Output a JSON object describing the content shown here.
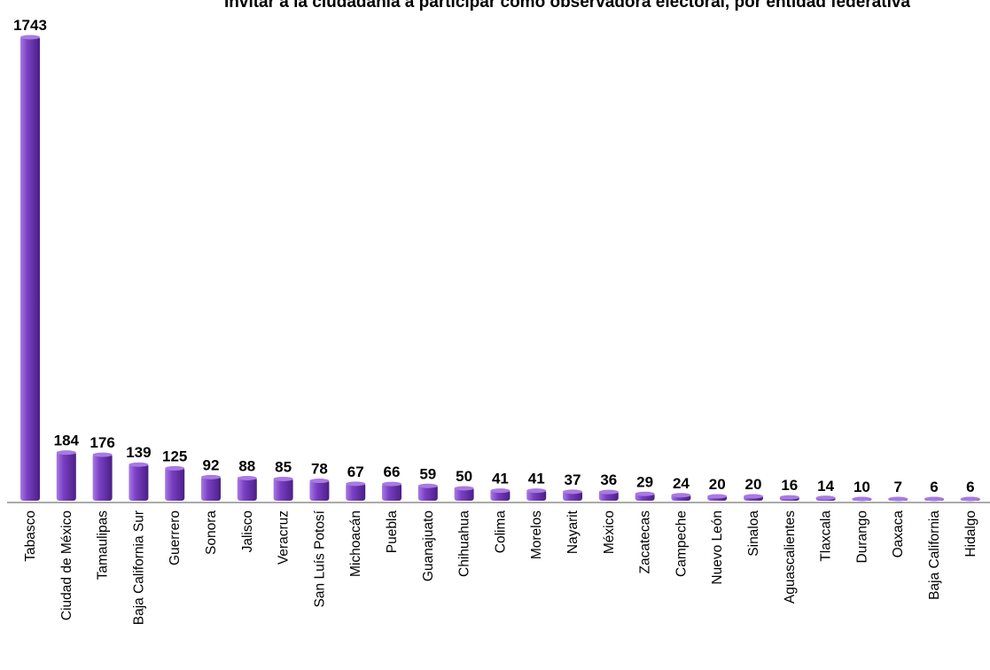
{
  "chart_data": {
    "type": "bar",
    "title": "Invitar a la ciudadanía a participar como observadora electoral, por entidad federativa",
    "categories": [
      "Tabasco",
      "Ciudad de México",
      "Tamaulipas",
      "Baja California Sur",
      "Guerrero",
      "Sonora",
      "Jalisco",
      "Veracruz",
      "San Luís Potosí",
      "Michoacán",
      "Puebla",
      "Guanajuato",
      "Chihuahua",
      "Colima",
      "Morelos",
      "Nayarit",
      "México",
      "Zacatecas",
      "Campeche",
      "Nuevo León",
      "Sinaloa",
      "Aguascalientes",
      "Tlaxcala",
      "Durango",
      "Oaxaca",
      "Baja California",
      "Hidalgo"
    ],
    "values": [
      1743,
      184,
      176,
      139,
      125,
      92,
      88,
      85,
      78,
      67,
      66,
      59,
      50,
      41,
      41,
      37,
      36,
      29,
      24,
      20,
      20,
      16,
      14,
      10,
      7,
      6,
      6
    ],
    "bar_color": "#7a3fc4",
    "bar_color_dark": "#4b1f86",
    "bar_color_light": "#a77be0",
    "grid": false,
    "legend": "none"
  }
}
